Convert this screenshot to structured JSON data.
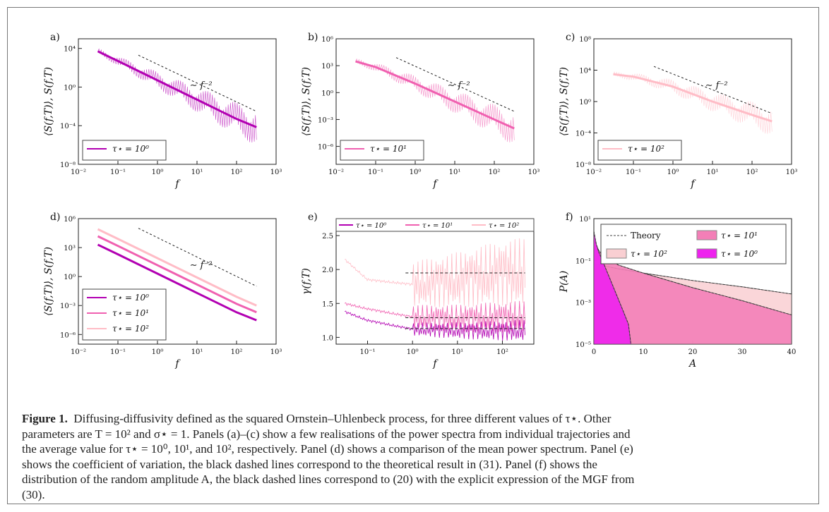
{
  "figure": {
    "caption_label": "Figure 1.",
    "caption_lines": [
      "Diffusing-diffusivity defined as the squared Ornstein–Uhlenbeck process, for three different values of τ⋆. Other",
      "parameters are T = 10² and σ⋆ = 1. Panels (a)–(c) show a few realisations of the power spectra from individual trajectories and",
      "the average value for τ⋆ = 10⁰, 10¹, and 10², respectively. Panel (d) shows a comparison of the mean power spectrum. Panel (e)",
      "shows the coefficient of variation, the black dashed lines correspond to the theoretical result in (31). Panel (f) shows the",
      "distribution of the random amplitude A, the black dashed lines correspond to (20) with the explicit expression of the MGF from",
      "(30)."
    ],
    "colors": {
      "tau0": "#b200b2",
      "tau1": "#f060b0",
      "tau2": "#ffbcc6",
      "tau0_fill": "#ee22ee",
      "tau1_fill": "#f37fb7",
      "tau2_fill": "#f9cfd2"
    }
  },
  "chart_data": [
    {
      "panel_label": "a)",
      "type": "line",
      "xlabel": "f",
      "ylabel": "⟨S(f,T)⟩, S(f,T)",
      "xscale": "log",
      "yscale": "log",
      "xlim": [
        0.01,
        1000
      ],
      "ylim": [
        1e-08,
        100000.0
      ],
      "xticks": [
        "10⁻²",
        "10⁻¹",
        "10⁰",
        "10¹",
        "10²",
        "10³"
      ],
      "yticks": [
        "10⁻⁸",
        "10⁻⁴",
        "10⁰",
        "10⁴"
      ],
      "annotation": "∼ f⁻²",
      "legend": [
        "τ⋆ = 10⁰"
      ],
      "legend_position": "lower-left",
      "series": [
        {
          "name": "τ⋆ = 10⁰",
          "x": [
            0.031,
            0.1,
            1,
            10,
            100,
            320
          ],
          "y": [
            5000,
            500,
            5,
            0.05,
            0.0005,
            7e-05
          ]
        }
      ],
      "reference_line": {
        "x": [
          0.33,
          320
        ],
        "y": [
          2000,
          0.003
        ]
      }
    },
    {
      "panel_label": "b)",
      "type": "line",
      "xlabel": "f",
      "ylabel": "⟨S(f,T)⟩, S(f,T)",
      "xscale": "log",
      "yscale": "log",
      "xlim": [
        0.01,
        1000
      ],
      "ylim": [
        1e-08,
        1000000.0
      ],
      "xticks": [
        "10⁻²",
        "10⁻¹",
        "10⁰",
        "10¹",
        "10²",
        "10³"
      ],
      "yticks": [
        "10⁻⁶",
        "10⁻³",
        "10⁰",
        "10³",
        "10⁶"
      ],
      "annotation": "∼ f⁻²",
      "legend": [
        "τ⋆ = 10¹"
      ],
      "legend_position": "lower-left",
      "series": [
        {
          "name": "τ⋆ = 10¹",
          "x": [
            0.031,
            0.1,
            1,
            10,
            100,
            320
          ],
          "y": [
            3000,
            700,
            10,
            0.1,
            0.001,
            0.0001
          ]
        }
      ],
      "reference_line": {
        "x": [
          0.33,
          320
        ],
        "y": [
          8000,
          0.008
        ]
      }
    },
    {
      "panel_label": "c)",
      "type": "line",
      "xlabel": "f",
      "ylabel": "⟨S(f,T)⟩, S(f,T)",
      "xscale": "log",
      "yscale": "log",
      "xlim": [
        0.01,
        1000
      ],
      "ylim": [
        1e-08,
        100000000.0
      ],
      "xticks": [
        "10⁻²",
        "10⁻¹",
        "10⁰",
        "10¹",
        "10²",
        "10³"
      ],
      "yticks": [
        "10⁻⁸",
        "10⁻⁴",
        "10⁰",
        "10⁴",
        "10⁸"
      ],
      "annotation": "∼ f⁻²",
      "legend": [
        "τ⋆ = 10²"
      ],
      "legend_position": "lower-left",
      "series": [
        {
          "name": "τ⋆ = 10²",
          "x": [
            0.031,
            0.1,
            1,
            10,
            100,
            320
          ],
          "y": [
            3000,
            1500,
            80,
            1,
            0.02,
            0.003
          ]
        }
      ],
      "reference_line": {
        "x": [
          0.33,
          320
        ],
        "y": [
          30000,
          0.03
        ]
      }
    },
    {
      "panel_label": "d)",
      "type": "line",
      "xlabel": "f",
      "ylabel": "⟨S(f,T)⟩, S(f,T)",
      "xscale": "log",
      "yscale": "log",
      "xlim": [
        0.01,
        1000
      ],
      "ylim": [
        1e-07,
        1000000.0
      ],
      "xticks": [
        "10⁻²",
        "10⁻¹",
        "10⁰",
        "10¹",
        "10²",
        "10³"
      ],
      "yticks": [
        "10⁻⁶",
        "10⁻³",
        "10⁰",
        "10³",
        "10⁶"
      ],
      "annotation": "∼ f⁻²",
      "legend": [
        "τ⋆ = 10⁰",
        "τ⋆ = 10¹",
        "τ⋆ = 10²"
      ],
      "legend_position": "lower-left",
      "series": [
        {
          "name": "τ⋆ = 10⁰",
          "x": [
            0.031,
            0.1,
            1,
            10,
            100,
            320
          ],
          "y": [
            2000,
            200,
            2,
            0.02,
            0.0002,
            3e-05
          ]
        },
        {
          "name": "τ⋆ = 10¹",
          "x": [
            0.031,
            0.1,
            1,
            10,
            100,
            320
          ],
          "y": [
            15000,
            1500,
            15,
            0.15,
            0.0015,
            0.0002
          ]
        },
        {
          "name": "τ⋆ = 10²",
          "x": [
            0.031,
            0.1,
            1,
            10,
            100,
            320
          ],
          "y": [
            80000,
            8000,
            80,
            0.8,
            0.008,
            0.001
          ]
        }
      ],
      "reference_line": {
        "x": [
          0.33,
          320
        ],
        "y": [
          100000,
          0.1
        ]
      }
    },
    {
      "panel_label": "e)",
      "type": "line",
      "xlabel": "f",
      "ylabel": "γ(f,T)",
      "xscale": "log",
      "yscale": "linear",
      "xlim": [
        0.02,
        500
      ],
      "ylim": [
        0.9,
        2.75
      ],
      "yticks": [
        "1.0",
        "1.5",
        "2.0",
        "2.5"
      ],
      "xticks": [
        "10⁻¹",
        "10⁰",
        "10¹",
        "10²"
      ],
      "legend": [
        "τ⋆ = 10⁰",
        "τ⋆ = 10¹",
        "τ⋆ = 10²"
      ],
      "legend_position": "top",
      "series": [
        {
          "name": "τ⋆ = 10⁰",
          "x": [
            0.031,
            0.1,
            1,
            10,
            100,
            320
          ],
          "y": [
            1.38,
            1.25,
            1.12,
            1.1,
            1.1,
            1.1
          ]
        },
        {
          "name": "τ⋆ = 10¹",
          "x": [
            0.031,
            0.1,
            1,
            10,
            100,
            320
          ],
          "y": [
            1.5,
            1.42,
            1.3,
            1.28,
            1.3,
            1.3
          ]
        },
        {
          "name": "τ⋆ = 10²",
          "x": [
            0.031,
            0.1,
            1,
            10,
            100,
            320
          ],
          "y": [
            2.15,
            1.85,
            1.78,
            1.85,
            1.95,
            1.95
          ]
        }
      ],
      "theory_lines": [
        {
          "y": 1.13,
          "x_from": 0.7
        },
        {
          "y": 1.29,
          "x_from": 0.7
        },
        {
          "y": 1.95,
          "x_from": 0.7
        }
      ]
    },
    {
      "panel_label": "f)",
      "type": "area",
      "xlabel": "A",
      "ylabel": "P(A)",
      "xscale": "linear",
      "yscale": "log",
      "xlim": [
        0,
        40
      ],
      "ylim": [
        1e-05,
        10
      ],
      "xticks": [
        "0",
        "10",
        "20",
        "30",
        "40"
      ],
      "yticks": [
        "10⁻⁵",
        "10⁻³",
        "10⁻¹",
        "10¹"
      ],
      "legend": [
        "Theory",
        "τ⋆ = 10¹",
        "τ⋆ = 10²",
        "τ⋆ = 10⁰"
      ],
      "legend_position": "top-right",
      "series": [
        {
          "name": "τ⋆ = 10⁰",
          "x": [
            0,
            0.5,
            1,
            2,
            4,
            6,
            7,
            7.5
          ],
          "y": [
            2.5,
            0.6,
            0.25,
            0.07,
            0.005,
            0.00035,
            9e-05,
            1e-05
          ]
        },
        {
          "name": "τ⋆ = 10¹",
          "x": [
            0,
            1,
            2,
            5,
            10,
            20,
            30,
            40
          ],
          "y": [
            1.0,
            0.3,
            0.15,
            0.06,
            0.025,
            0.005,
            0.0012,
            0.00025
          ]
        },
        {
          "name": "τ⋆ = 10²",
          "x": [
            0,
            1,
            2,
            5,
            10,
            20,
            30,
            40
          ],
          "y": [
            0.07,
            0.06,
            0.055,
            0.04,
            0.025,
            0.011,
            0.0055,
            0.0025
          ]
        }
      ]
    }
  ]
}
